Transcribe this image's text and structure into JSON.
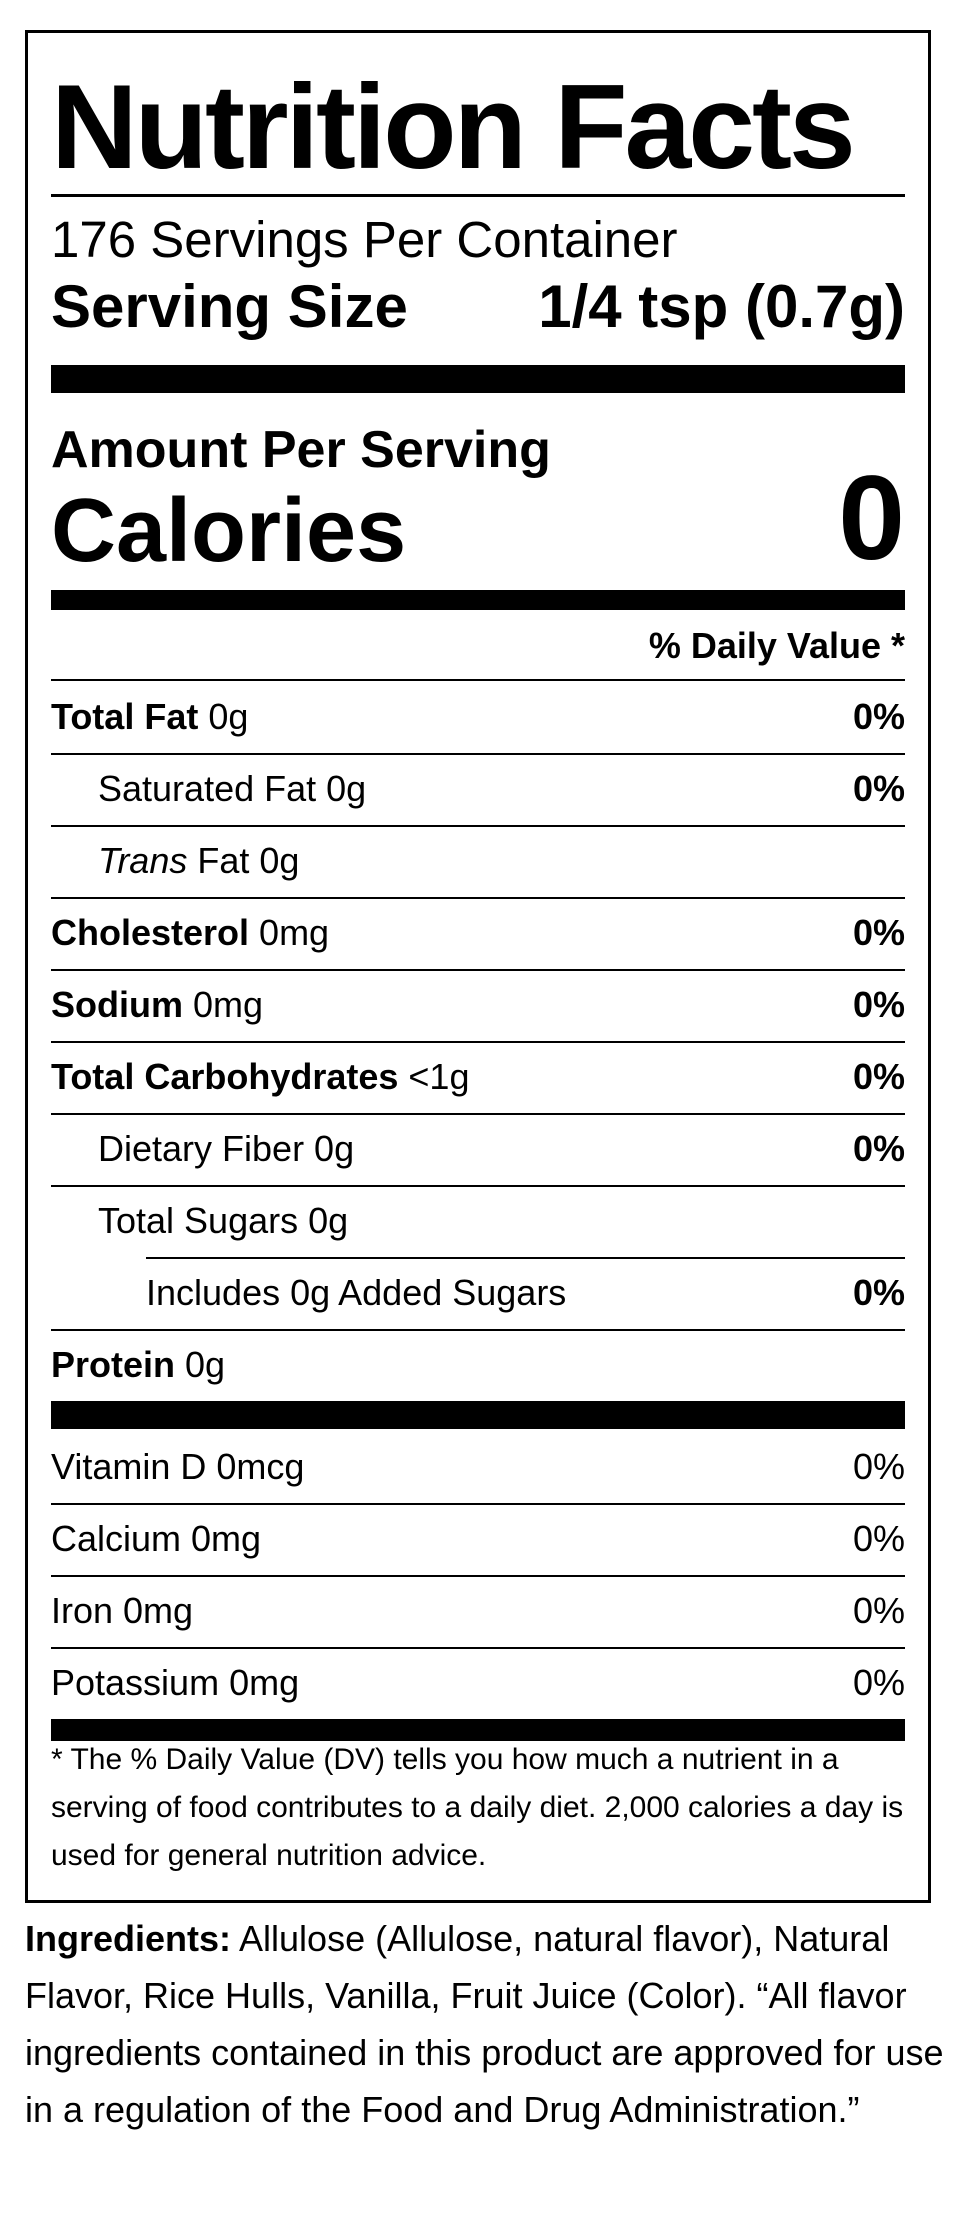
{
  "label": {
    "title": "Nutrition Facts",
    "servings_per_container": "176 Servings Per Container",
    "serving_size_label": "Serving Size",
    "serving_size_value": "1/4 tsp (0.7g)",
    "amount_per_serving": "Amount Per Serving",
    "calories_label": "Calories",
    "calories_value": "0",
    "daily_value_header": "% Daily Value *",
    "nutrients": [
      {
        "bold": "Total Fat",
        "value": " 0g",
        "dv": "0%"
      },
      {
        "bold": "",
        "value": "Saturated Fat 0g",
        "dv": "0%"
      },
      {
        "italic": "Trans",
        "value": " Fat 0g",
        "dv": ""
      },
      {
        "bold": "Cholesterol",
        "value": " 0mg",
        "dv": "0%"
      },
      {
        "bold": "Sodium",
        "value": " 0mg",
        "dv": "0%"
      },
      {
        "bold": "Total Carbohydrates",
        "value": " <1g",
        "dv": "0%"
      },
      {
        "bold": "",
        "value": "Dietary Fiber 0g",
        "dv": "0%"
      },
      {
        "bold": "",
        "value": "Total Sugars 0g",
        "dv": ""
      },
      {
        "bold": "",
        "value": "Includes 0g Added Sugars",
        "dv": "0%"
      },
      {
        "bold": "Protein",
        "value": " 0g",
        "dv": ""
      }
    ],
    "vitamins": [
      {
        "name": "Vitamin D 0mcg",
        "dv": "0%"
      },
      {
        "name": "Calcium 0mg",
        "dv": "0%"
      },
      {
        "name": "Iron 0mg",
        "dv": "0%"
      },
      {
        "name": "Potassium 0mg",
        "dv": "0%"
      }
    ],
    "footnote": "* The % Daily Value (DV) tells you how much a nutrient in a serving of food contributes to a daily diet. 2,000 calories a day is used for general nutrition advice."
  },
  "ingredients": {
    "heading": "Ingredients:",
    "text": " Allulose (Allulose, natural flavor), Natural Flavor, Rice Hulls, Vanilla, Fruit Juice (Color). “All flavor ingredients contained in this product are approved for use in a regulation of the Food and Drug Administration.”"
  }
}
